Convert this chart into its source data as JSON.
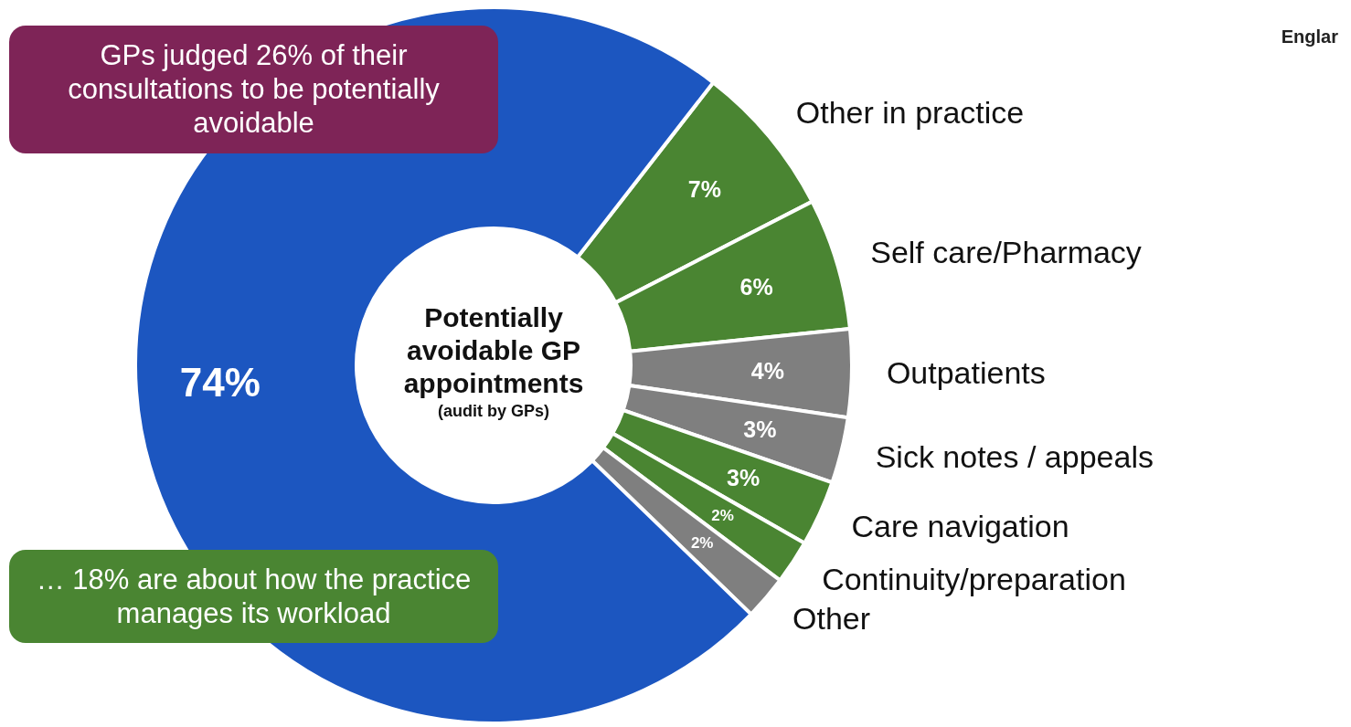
{
  "chart_data": {
    "type": "donut",
    "title": "Potentially avoidable GP appointments",
    "subtitle": "(audit by GPs)",
    "categories": [
      "Other in practice",
      "Self care/Pharmacy",
      "Outpatients",
      "Sick notes / appeals",
      "Care navigation",
      "Continuity/preparation",
      "Other",
      null
    ],
    "values": [
      7,
      6,
      4,
      3,
      3,
      2,
      2,
      74
    ],
    "value_labels": [
      "7%",
      "6%",
      "4%",
      "3%",
      "3%",
      "2%",
      "2%",
      "74%"
    ],
    "colors": [
      "#4a8532",
      "#4a8532",
      "#7f7f7f",
      "#7f7f7f",
      "#4a8532",
      "#4a8532",
      "#7f7f7f",
      "#1c56c0"
    ],
    "annotations": [
      "GPs judged 26% of their consultations to be potentially avoidable",
      "… 18% are about how the practice manages its workload",
      "Englar"
    ]
  }
}
